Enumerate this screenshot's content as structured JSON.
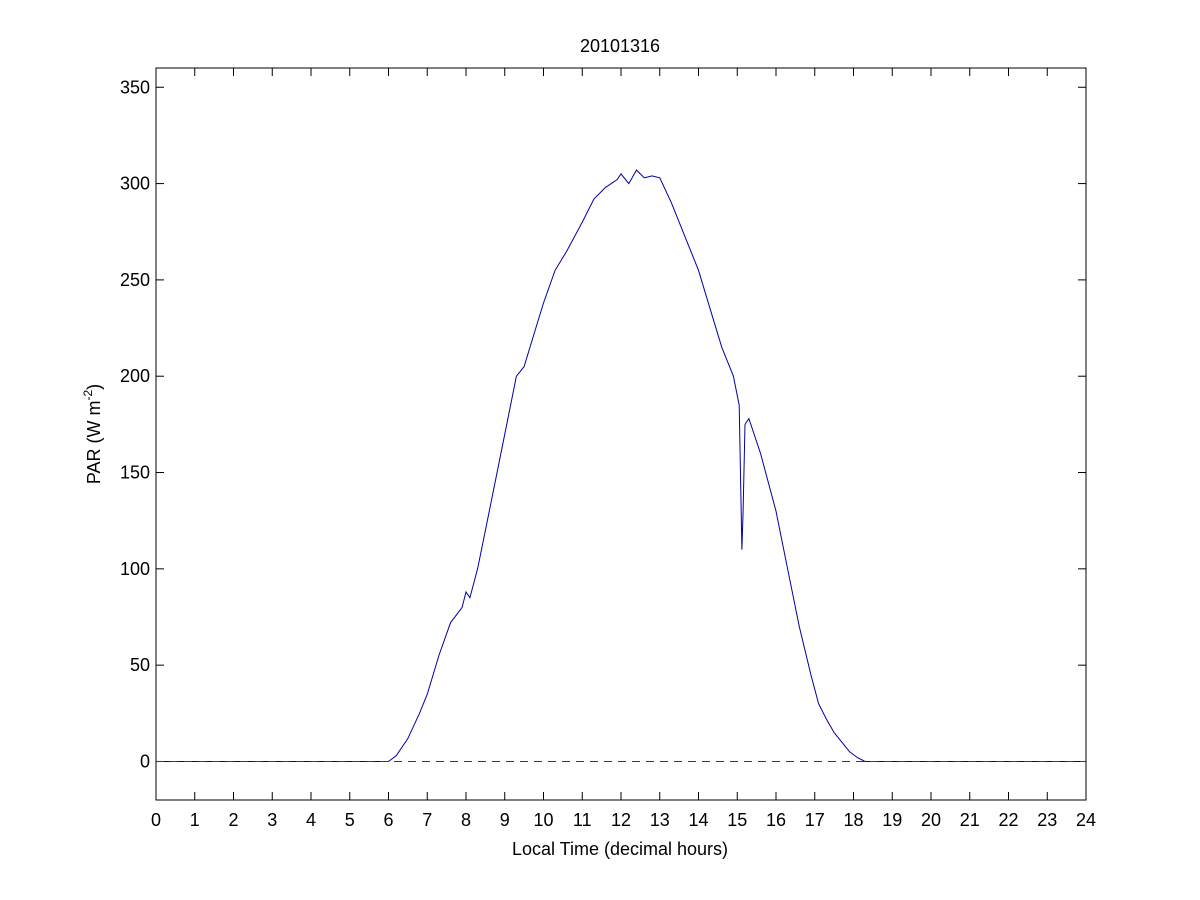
{
  "chart_data": {
    "type": "line",
    "title": "20101316",
    "xlabel": "Local Time (decimal hours)",
    "ylabel": {
      "prefix": "PAR (W m",
      "exponent": "-2",
      "suffix": ")"
    },
    "xlim": [
      0,
      24
    ],
    "ylim": [
      -20,
      360
    ],
    "xticks": [
      0,
      1,
      2,
      3,
      4,
      5,
      6,
      7,
      8,
      9,
      10,
      11,
      12,
      13,
      14,
      15,
      16,
      17,
      18,
      19,
      20,
      21,
      22,
      23,
      24
    ],
    "yticks": [
      0,
      50,
      100,
      150,
      200,
      250,
      300,
      350
    ],
    "grid": false,
    "colors": {
      "par_line": "#0000a0",
      "zero_line": "#cc0000"
    },
    "series": [
      {
        "style": "solid",
        "x": [
          0,
          6.0,
          6.2,
          6.5,
          6.8,
          7.0,
          7.3,
          7.6,
          7.9,
          8.0,
          8.1,
          8.3,
          8.6,
          9.0,
          9.3,
          9.5,
          9.8,
          10.0,
          10.3,
          10.6,
          11.0,
          11.3,
          11.6,
          11.9,
          12.0,
          12.2,
          12.4,
          12.6,
          12.8,
          13.0,
          13.3,
          13.6,
          14.0,
          14.3,
          14.6,
          14.9,
          15.05,
          15.12,
          15.15,
          15.2,
          15.3,
          15.6,
          16.0,
          16.3,
          16.6,
          16.9,
          17.1,
          17.3,
          17.5,
          17.7,
          17.9,
          18.1,
          18.3,
          24
        ],
        "y": [
          0,
          0,
          3,
          12,
          25,
          35,
          55,
          72,
          80,
          88,
          85,
          100,
          130,
          170,
          200,
          205,
          225,
          238,
          255,
          265,
          280,
          292,
          298,
          302,
          305,
          300,
          307,
          303,
          304,
          303,
          290,
          275,
          255,
          235,
          215,
          200,
          185,
          110,
          130,
          175,
          178,
          160,
          130,
          100,
          70,
          45,
          30,
          22,
          15,
          10,
          5,
          2,
          0,
          0
        ]
      },
      {
        "style": "dashed",
        "x": [
          0,
          24
        ],
        "y": [
          0,
          0
        ]
      }
    ]
  }
}
